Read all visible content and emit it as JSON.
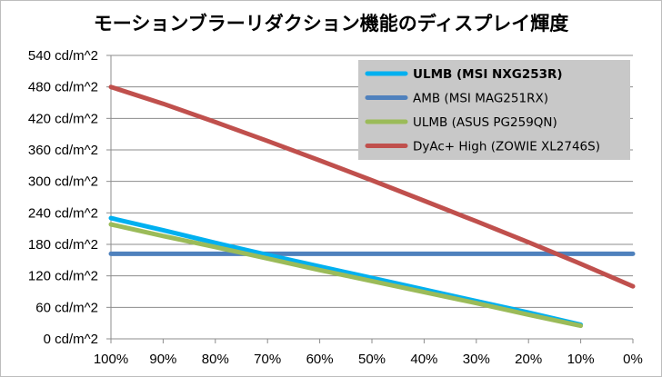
{
  "chart_data": {
    "type": "line",
    "title": "モーションブラーリダクション機能のディスプレイ輝度",
    "xlabel": "",
    "ylabel": "",
    "x": [
      100,
      90,
      80,
      70,
      60,
      50,
      40,
      30,
      20,
      10,
      0
    ],
    "x_tick_labels": [
      "100%",
      "90%",
      "80%",
      "70%",
      "60%",
      "50%",
      "40%",
      "30%",
      "20%",
      "10%",
      "0%"
    ],
    "xlim": [
      100,
      0
    ],
    "ylim": [
      0,
      540
    ],
    "y_ticks": [
      0,
      60,
      120,
      180,
      240,
      300,
      360,
      420,
      480,
      540
    ],
    "y_tick_labels": [
      "0 cd/m^2",
      "60 cd/m^2",
      "120 cd/m^2",
      "180 cd/m^2",
      "240 cd/m^2",
      "300 cd/m^2",
      "360 cd/m^2",
      "420 cd/m^2",
      "480 cd/m^2",
      "540 cd/m^2"
    ],
    "grid": "horizontal",
    "legend_position": "top-right",
    "series": [
      {
        "name": "ULMB (MSI NXG253R)",
        "color": "#00b0f0",
        "bold": true,
        "x": [
          100,
          90,
          80,
          70,
          60,
          50,
          40,
          30,
          20,
          10
        ],
        "values": [
          230,
          207,
          183,
          160,
          138,
          116,
          94,
          72,
          50,
          27
        ]
      },
      {
        "name": "AMB (MSI MAG251RX)",
        "color": "#4f81bd",
        "bold": false,
        "x": [
          100,
          0
        ],
        "values": [
          162,
          162
        ]
      },
      {
        "name": "ULMB (ASUS PG259QN)",
        "color": "#9bbb59",
        "bold": false,
        "x": [
          100,
          90,
          80,
          70,
          60,
          50,
          40,
          30,
          20,
          10
        ],
        "values": [
          218,
          196,
          175,
          153,
          131,
          110,
          89,
          68,
          46,
          25
        ]
      },
      {
        "name": "DyAc+ High (ZOWIE XL2746S)",
        "color": "#c0504d",
        "bold": false,
        "x": [
          100,
          90,
          80,
          70,
          60,
          50,
          40,
          30,
          20,
          10,
          0
        ],
        "values": [
          480,
          448,
          413,
          377,
          340,
          302,
          263,
          224,
          184,
          143,
          100
        ]
      }
    ]
  }
}
